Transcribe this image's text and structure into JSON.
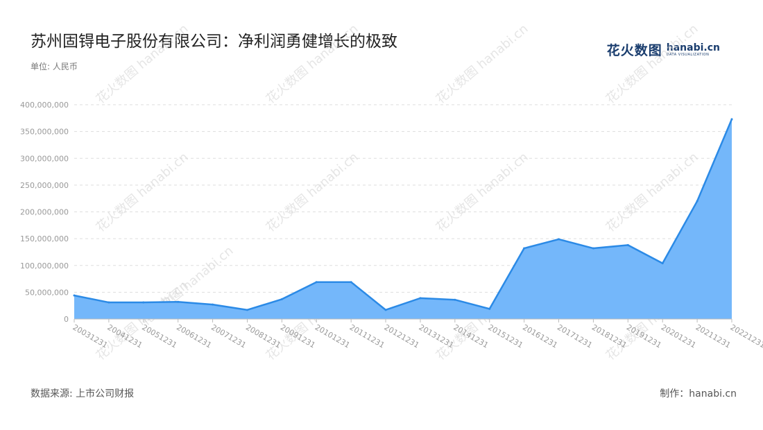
{
  "header": {
    "title": "苏州固锝电子股份有限公司：净利润勇健增长的极致",
    "unit": "单位: 人民币"
  },
  "brand": {
    "name_cn": "花火数图",
    "name_en": "hanabi.cn",
    "tagline": "DATA VISUALIZATION",
    "color": "#1a3d6e"
  },
  "watermark": {
    "text_cn": "花火数图",
    "text_en": "hanabi.cn"
  },
  "footer": {
    "source": "数据来源: 上市公司财报",
    "credit": "制作：hanabi.cn"
  },
  "chart_data": {
    "type": "area",
    "title": "苏州固锝电子股份有限公司：净利润勇健增长的极致",
    "xlabel": "",
    "ylabel": "单位: 人民币",
    "ylim": [
      0,
      400000000
    ],
    "yticks": [
      0,
      50000000,
      100000000,
      150000000,
      200000000,
      250000000,
      300000000,
      350000000,
      400000000
    ],
    "ytick_labels": [
      "0",
      "50,000,000",
      "100,000,000",
      "150,000,000",
      "200,000,000",
      "250,000,000",
      "300,000,000",
      "350,000,000",
      "400,000,000"
    ],
    "grid": true,
    "legend": "none",
    "colors": {
      "line": "#2b8ae6",
      "fill": "#74b7fa",
      "grid": "#dddddd",
      "axis": "#bbbbbb"
    },
    "categories": [
      "20031231",
      "20041231",
      "20051231",
      "20061231",
      "20071231",
      "20081231",
      "20091231",
      "20101231",
      "20111231",
      "20121231",
      "20131231",
      "20141231",
      "20151231",
      "20161231",
      "20171231",
      "20181231",
      "20191231",
      "20201231",
      "20211231",
      "20221231"
    ],
    "series": [
      {
        "values": [
          44000000,
          31000000,
          31000000,
          32000000,
          27000000,
          17000000,
          37000000,
          69000000,
          69000000,
          17000000,
          39000000,
          36000000,
          19000000,
          132000000,
          149000000,
          132000000,
          138000000,
          104000000,
          220000000,
          373000000
        ]
      }
    ]
  }
}
